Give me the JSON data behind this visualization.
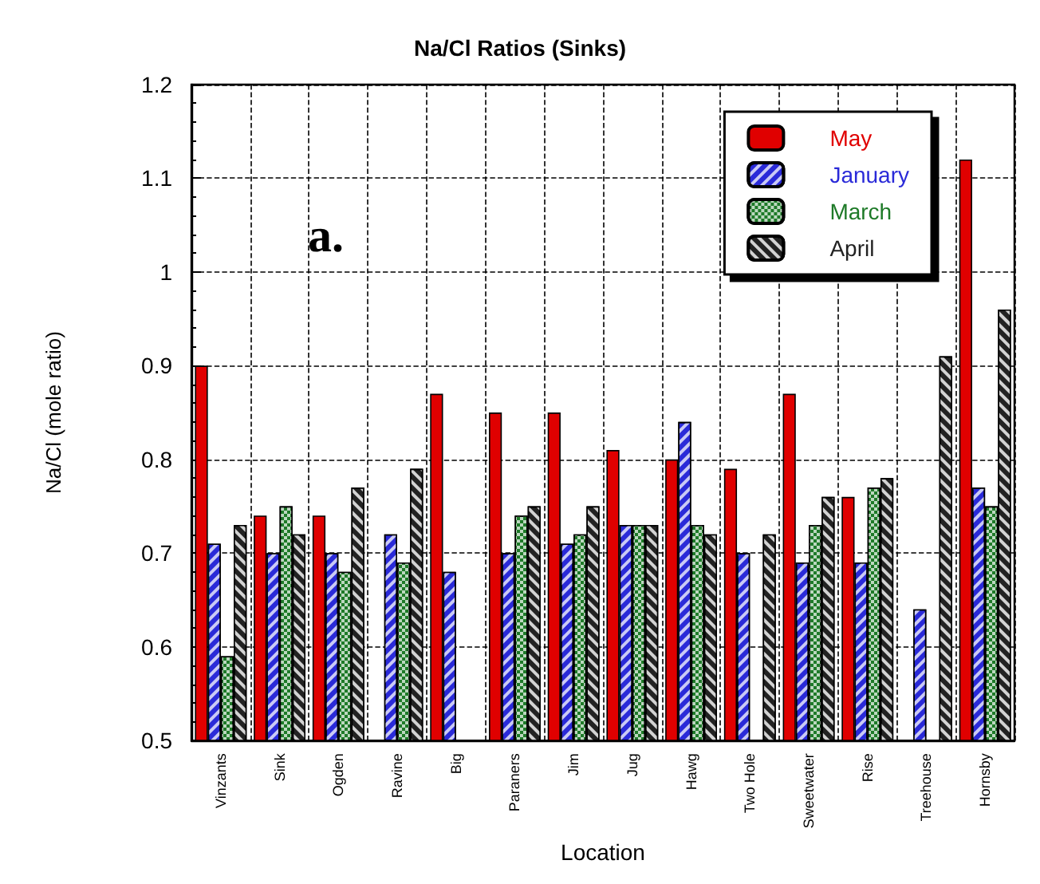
{
  "chart_data": {
    "type": "bar",
    "title": "Na/Cl Ratios (Sinks)",
    "xlabel": "Location",
    "ylabel": "Na/Cl (mole ratio)",
    "categories": [
      "Vinzants",
      "Sink",
      "Ogden",
      "Ravine",
      "Big",
      "Paraners",
      "Jim",
      "Jug",
      "Hawg",
      "Two Hole",
      "Sweetwater",
      "Rise",
      "Treehouse",
      "Hornsby"
    ],
    "series": [
      {
        "name": "May",
        "color": "#e00000",
        "values": [
          0.9,
          0.74,
          0.74,
          null,
          0.87,
          0.85,
          0.85,
          0.81,
          0.8,
          0.79,
          0.87,
          0.76,
          null,
          1.12
        ]
      },
      {
        "name": "January",
        "color": "#2a2ad8",
        "values": [
          0.71,
          0.7,
          0.7,
          0.72,
          0.68,
          0.7,
          0.71,
          0.73,
          0.84,
          0.7,
          0.69,
          0.69,
          0.64,
          0.77
        ]
      },
      {
        "name": "March",
        "color": "#1e7a28",
        "values": [
          0.59,
          0.75,
          0.68,
          0.69,
          null,
          0.74,
          0.72,
          0.73,
          0.73,
          null,
          0.73,
          0.77,
          null,
          0.75
        ]
      },
      {
        "name": "April",
        "color": "#222222",
        "values": [
          0.73,
          0.72,
          0.77,
          0.79,
          null,
          0.75,
          0.75,
          0.73,
          0.72,
          0.72,
          0.76,
          0.78,
          0.91,
          0.96
        ]
      }
    ],
    "ylim": [
      0.5,
      1.2
    ],
    "yticks": [
      0.5,
      0.6,
      0.7,
      0.8,
      0.9,
      1,
      1.1,
      1.2
    ],
    "annotations": [
      "a."
    ],
    "grid": true,
    "legend": "top right"
  }
}
